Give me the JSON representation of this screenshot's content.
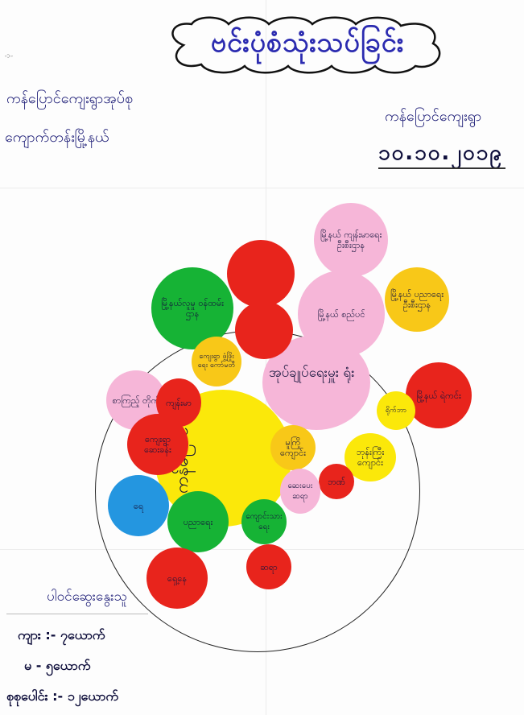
{
  "title": "ဗင်းပုံစံသုံးသပ်ခြင်း",
  "header": {
    "left_line1": "ကန်ပြောင်ကျေးရွာအုပ်စု",
    "left_line2": "ကျောက်တန်းမြို့နယ်",
    "right_label": "ကန်ပြောင်ကျေးရွာ",
    "date": "၁၀.၁၀.၂၀၁၉"
  },
  "center_labels": {
    "village": "ကန်ပြောင်",
    "admin": "အုပ်ချုပ်ရေးမှူး ရုံး"
  },
  "colors": {
    "red": "#e8241c",
    "pink": "#f6b6d8",
    "yellow": "#fbe80a",
    "orange_yellow": "#f8c818",
    "green": "#16b335",
    "blue": "#2496e0",
    "title": "#2b2bb0"
  },
  "bubbles": [
    {
      "label": "မြို့နယ် ကျန်းမာရေး ဦးစီးဌာန",
      "color": "pink"
    },
    {
      "label": "",
      "color": "red"
    },
    {
      "label": "မြို့နယ် စည်ပင်",
      "color": "pink"
    },
    {
      "label": "မြို့နယ် ပညာရေး ဦးစီးဌာန",
      "color": "orange_yellow"
    },
    {
      "label": "မြို့နယ်လူမှု ဝန်ထမ်း ဌာန",
      "color": "green"
    },
    {
      "label": "",
      "color": "red"
    },
    {
      "label": "ကျေးရွာ ဖွံ့ဖြိုးရေး ကော်မတီ",
      "color": "orange_yellow"
    },
    {
      "label": "မြို့နယ် ရဲကင်း",
      "color": "red"
    },
    {
      "label": "စာကြည့် တိုက်",
      "color": "pink"
    },
    {
      "label": "ကျန်းမာ",
      "color": "red"
    },
    {
      "label": "ရိုက်ဘာ",
      "color": "yellow"
    },
    {
      "label": "ကျေးရွာ ဆေးခန်း",
      "color": "red"
    },
    {
      "label": "မူကြိုကျောင်း",
      "color": "orange_yellow"
    },
    {
      "label": "ဘုန်းကြီး ကျောင်း",
      "color": "yellow"
    },
    {
      "label": "ဘဏ်",
      "color": "red"
    },
    {
      "label": "ဆေးပေး ဆရာ",
      "color": "pink"
    },
    {
      "label": "ရေ",
      "color": "blue"
    },
    {
      "label": "ပညာရေး",
      "color": "green"
    },
    {
      "label": "ကျောင်းသား ရေး",
      "color": "green"
    },
    {
      "label": "ရှေ့နေ",
      "color": "red"
    },
    {
      "label": "ဆရာ",
      "color": "red"
    },
    {
      "label": "ဆေးပေး",
      "color": "red"
    }
  ],
  "legend": {
    "title": "ပါဝင်ဆွေးနွေးသူ",
    "items": [
      "ကျား :- ၇ယောက်",
      "မ - ၅ယောက်",
      "စုစုပေါင်း :- ၁၂ယောက်"
    ]
  }
}
